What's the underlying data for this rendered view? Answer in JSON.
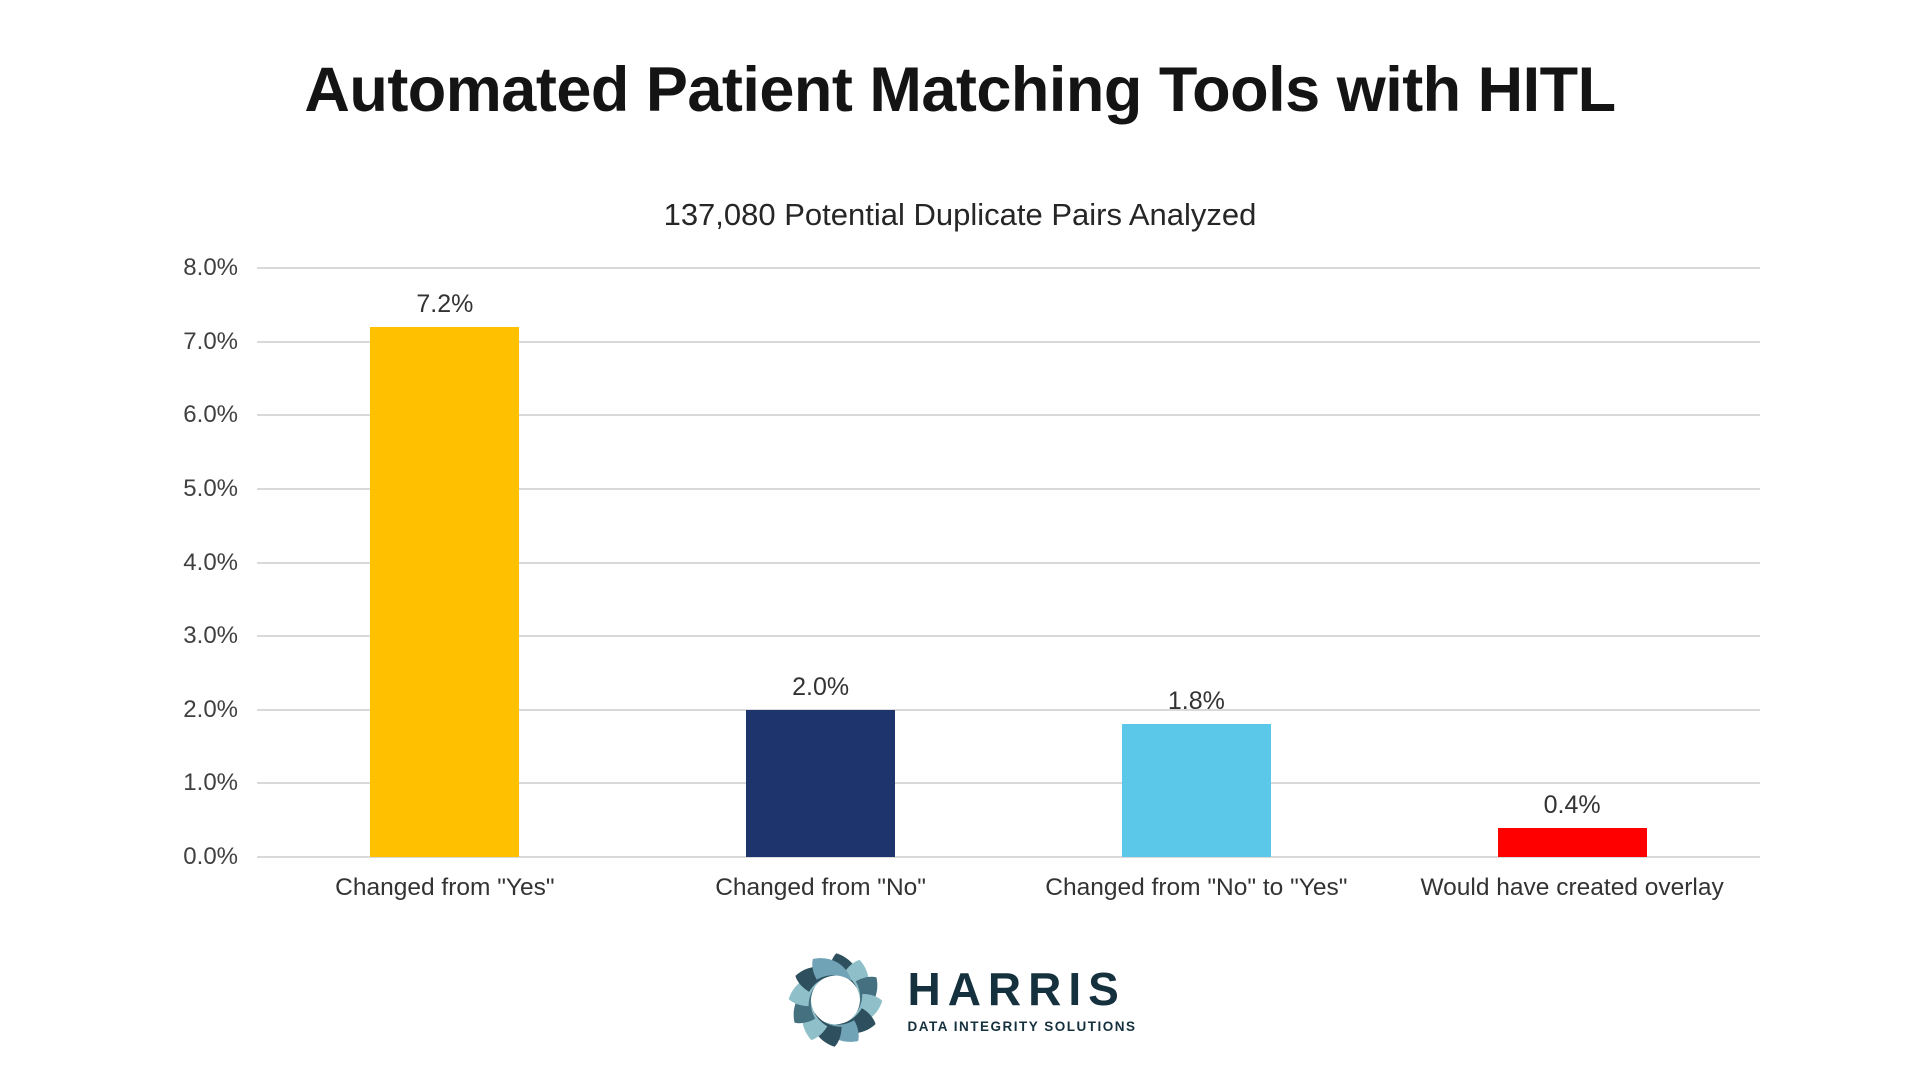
{
  "chart_data": {
    "type": "bar",
    "title": "Automated Patient Matching Tools with HITL",
    "subtitle": "137,080 Potential Duplicate Pairs Analyzed",
    "categories": [
      "Changed from \"Yes\"",
      "Changed from \"No\"",
      "Changed from \"No\" to \"Yes\"",
      "Would have created overlay"
    ],
    "values": [
      7.2,
      2.0,
      1.8,
      0.4
    ],
    "value_labels": [
      "7.2%",
      "2.0%",
      "1.8%",
      "0.4%"
    ],
    "bar_colors": [
      "#FFC000",
      "#1D346C",
      "#5BC8EA",
      "#FF0000"
    ],
    "xlabel": "",
    "ylabel": "",
    "ylim": [
      0,
      8
    ],
    "ytick_labels": [
      "0.0%",
      "1.0%",
      "2.0%",
      "3.0%",
      "4.0%",
      "5.0%",
      "6.0%",
      "7.0%",
      "8.0%"
    ],
    "grid": true,
    "legend": "none"
  },
  "footer": {
    "logo": {
      "brand": "HARRIS",
      "tagline": "DATA INTEGRITY SOLUTIONS",
      "icon": "pinwheel-swirl-icon",
      "brand_text_color": "#15313E",
      "blade_colors": [
        "#2E4F5E",
        "#8FBFC9",
        "#44707F",
        "#8FBFC9",
        "#2E4F5E",
        "#6FA3B5",
        "#2E4F5E",
        "#8FBFC9",
        "#44707F",
        "#8FBFC9",
        "#2E4F5E",
        "#6FA3B5"
      ]
    }
  },
  "colors": {
    "background": "#FFFFFF",
    "gridline": "#D9D9D9",
    "tick_label": "#404040",
    "category_label": "#333333",
    "value_label": "#333333",
    "title": "#141414"
  }
}
